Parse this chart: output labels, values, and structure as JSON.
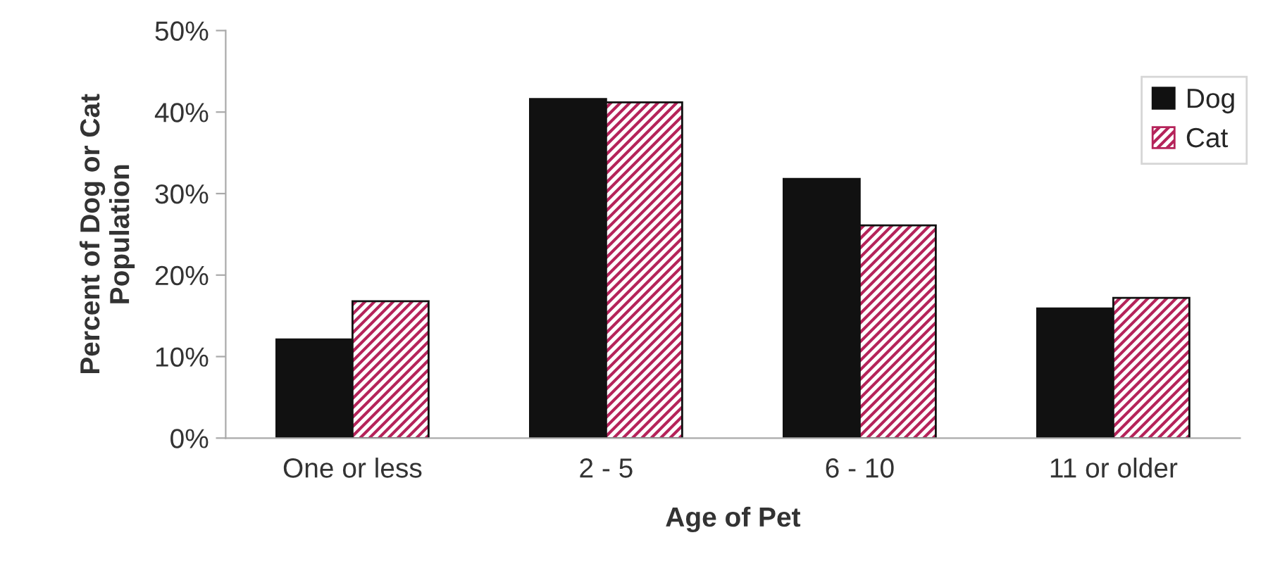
{
  "chart_data": {
    "type": "bar",
    "xlabel": "Age of Pet",
    "ylabel": "Percent of Dog or Cat\nPopulation",
    "categories": [
      "One or less",
      "2 - 5",
      "6 - 10",
      "11 or older"
    ],
    "series": [
      {
        "name": "Dog",
        "color": "#111111",
        "values": [
          12.1,
          41.6,
          31.8,
          15.9
        ]
      },
      {
        "name": "Cat",
        "color": "#b5235a",
        "values": [
          16.8,
          41.2,
          26.1,
          17.2
        ]
      }
    ],
    "ylim": [
      0,
      50
    ],
    "yticks": [
      {
        "value": 0,
        "label": "0%"
      },
      {
        "value": 10,
        "label": "10%"
      },
      {
        "value": 20,
        "label": "20%"
      },
      {
        "value": 30,
        "label": "30%"
      },
      {
        "value": 40,
        "label": "40%"
      },
      {
        "value": 50,
        "label": "50%"
      }
    ],
    "grid": false,
    "legend": "top right"
  }
}
